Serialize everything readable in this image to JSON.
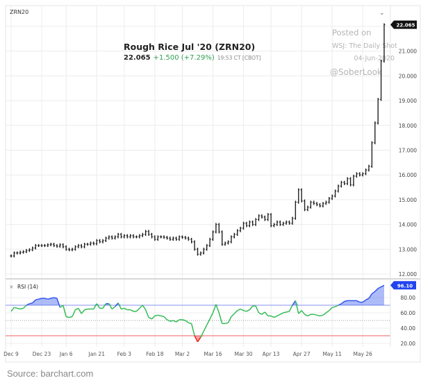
{
  "symbol": "ZRN20",
  "header": {
    "title": "Rough Rice Jul '20 (ZRN20)",
    "last": "22.065",
    "change": "+1.500 (+7.29%)",
    "time": "19:53 CT [CBOT]"
  },
  "watermark": {
    "line1": "Posted on",
    "line2": "WSJ: The Daily Shot",
    "line3": "04-Jun-2020",
    "line4": "@SoberLook"
  },
  "source": "Source: barchart.com",
  "colors": {
    "bars": "#222222",
    "up": "#2e9e4f",
    "rsi_normal": "#33bb55",
    "rsi_over": "#3355ee",
    "rsi_under": "#ee2222",
    "overbought_line": "#9aa8f0",
    "oversold_line": "#f08080"
  },
  "chart_data": [
    {
      "type": "bar",
      "subtype": "ohlc",
      "ylim": [
        12,
        22
      ],
      "yticks": [
        "12.000",
        "13.000",
        "14.000",
        "15.000",
        "16.000",
        "17.000",
        "18.000",
        "19.000",
        "20.000",
        "21.000"
      ],
      "last_label": "22.065",
      "grid": true,
      "xticks": [
        {
          "date": "2019-12-09",
          "label": "Dec 9"
        },
        {
          "date": "2019-12-23",
          "label": "Dec 23"
        },
        {
          "date": "2020-01-06",
          "label": "Jan 6"
        },
        {
          "date": "2020-01-21",
          "label": "Jan 21"
        },
        {
          "date": "2020-02-03",
          "label": "Feb 3"
        },
        {
          "date": "2020-02-18",
          "label": "Feb 18"
        },
        {
          "date": "2020-03-02",
          "label": "Mar 2"
        },
        {
          "date": "2020-03-16",
          "label": "Mar 16"
        },
        {
          "date": "2020-03-30",
          "label": "Mar 30"
        },
        {
          "date": "2020-04-13",
          "label": "Apr 13"
        },
        {
          "date": "2020-04-27",
          "label": "Apr 27"
        },
        {
          "date": "2020-05-11",
          "label": "May 11"
        },
        {
          "date": "2020-05-26",
          "label": "May 26"
        }
      ],
      "dates": [
        "2019-12-09",
        "2019-12-10",
        "2019-12-11",
        "2019-12-12",
        "2019-12-13",
        "2019-12-16",
        "2019-12-17",
        "2019-12-18",
        "2019-12-19",
        "2019-12-20",
        "2019-12-23",
        "2019-12-24",
        "2019-12-26",
        "2019-12-27",
        "2019-12-30",
        "2019-12-31",
        "2020-01-02",
        "2020-01-03",
        "2020-01-06",
        "2020-01-07",
        "2020-01-08",
        "2020-01-09",
        "2020-01-10",
        "2020-01-13",
        "2020-01-14",
        "2020-01-15",
        "2020-01-16",
        "2020-01-17",
        "2020-01-21",
        "2020-01-22",
        "2020-01-23",
        "2020-01-24",
        "2020-01-27",
        "2020-01-28",
        "2020-01-29",
        "2020-01-30",
        "2020-01-31",
        "2020-02-03",
        "2020-02-04",
        "2020-02-05",
        "2020-02-06",
        "2020-02-07",
        "2020-02-10",
        "2020-02-11",
        "2020-02-12",
        "2020-02-13",
        "2020-02-14",
        "2020-02-18",
        "2020-02-19",
        "2020-02-20",
        "2020-02-21",
        "2020-02-24",
        "2020-02-25",
        "2020-02-26",
        "2020-02-27",
        "2020-02-28",
        "2020-03-02",
        "2020-03-03",
        "2020-03-04",
        "2020-03-05",
        "2020-03-06",
        "2020-03-09",
        "2020-03-10",
        "2020-03-11",
        "2020-03-12",
        "2020-03-13",
        "2020-03-16",
        "2020-03-17",
        "2020-03-18",
        "2020-03-19",
        "2020-03-20",
        "2020-03-23",
        "2020-03-24",
        "2020-03-25",
        "2020-03-26",
        "2020-03-27",
        "2020-03-30",
        "2020-03-31",
        "2020-04-01",
        "2020-04-02",
        "2020-04-03",
        "2020-04-06",
        "2020-04-07",
        "2020-04-08",
        "2020-04-09",
        "2020-04-13",
        "2020-04-14",
        "2020-04-15",
        "2020-04-16",
        "2020-04-17",
        "2020-04-20",
        "2020-04-21",
        "2020-04-22",
        "2020-04-23",
        "2020-04-24",
        "2020-04-27",
        "2020-04-28",
        "2020-04-29",
        "2020-04-30",
        "2020-05-01",
        "2020-05-04",
        "2020-05-05",
        "2020-05-06",
        "2020-05-07",
        "2020-05-08",
        "2020-05-11",
        "2020-05-12",
        "2020-05-13",
        "2020-05-14",
        "2020-05-15",
        "2020-05-18",
        "2020-05-19",
        "2020-05-20",
        "2020-05-21",
        "2020-05-22",
        "2020-05-26",
        "2020-05-27",
        "2020-05-28",
        "2020-05-29",
        "2020-06-01",
        "2020-06-02",
        "2020-06-03",
        "2020-06-04"
      ],
      "close": [
        12.73,
        12.85,
        12.85,
        12.88,
        12.9,
        12.95,
        12.98,
        13.05,
        13.15,
        13.15,
        13.15,
        13.15,
        13.18,
        13.2,
        13.15,
        13.12,
        13.18,
        13.1,
        13.0,
        12.98,
        13.0,
        13.1,
        13.15,
        13.1,
        13.2,
        13.2,
        13.25,
        13.22,
        13.35,
        13.3,
        13.35,
        13.45,
        13.5,
        13.45,
        13.5,
        13.6,
        13.5,
        13.55,
        13.5,
        13.55,
        13.5,
        13.5,
        13.55,
        13.6,
        13.72,
        13.6,
        13.5,
        13.4,
        13.5,
        13.5,
        13.48,
        13.45,
        13.4,
        13.45,
        13.4,
        13.5,
        13.48,
        13.45,
        13.4,
        13.3,
        13.0,
        12.8,
        12.85,
        13.0,
        13.15,
        13.4,
        13.7,
        14.0,
        13.7,
        13.2,
        13.25,
        13.3,
        13.5,
        13.6,
        13.75,
        13.85,
        14.05,
        13.95,
        14.1,
        14.0,
        14.2,
        14.35,
        14.3,
        14.2,
        14.4,
        13.95,
        14.0,
        14.1,
        14.0,
        14.05,
        14.1,
        14.05,
        14.25,
        14.9,
        15.4,
        14.95,
        14.6,
        14.7,
        14.9,
        14.85,
        14.8,
        14.75,
        14.85,
        14.9,
        15.05,
        15.15,
        15.35,
        15.55,
        15.7,
        15.65,
        15.85,
        15.6,
        15.95,
        16.05,
        16.0,
        16.05,
        16.2,
        16.35,
        17.3,
        18.1,
        19.05,
        20.6,
        22.065
      ]
    },
    {
      "type": "line",
      "title": "RSI (14)",
      "ylim": [
        15,
        100
      ],
      "yticks": [
        "20.00",
        "40.00",
        "60.00",
        "80.00"
      ],
      "last_label": "96.10",
      "overbought": 70,
      "midline": 50,
      "oversold": 30,
      "values": [
        62,
        67,
        66,
        65,
        66,
        70,
        72,
        73,
        77,
        78,
        79,
        79,
        78,
        79,
        80,
        79,
        67,
        70,
        55,
        54,
        55,
        64,
        66,
        59,
        64,
        65,
        65,
        65,
        72,
        66,
        66,
        72,
        72,
        65,
        68,
        73,
        65,
        66,
        64,
        64,
        62,
        62,
        66,
        70,
        64,
        54,
        52,
        56,
        57,
        56,
        55,
        51,
        49,
        50,
        48,
        51,
        51,
        50,
        47,
        46,
        30,
        22,
        28,
        36,
        44,
        52,
        60,
        71,
        60,
        46,
        46,
        47,
        55,
        59,
        63,
        65,
        63,
        62,
        64,
        69,
        69,
        60,
        58,
        61,
        56,
        56,
        54,
        56,
        58,
        60,
        61,
        62,
        70,
        76,
        59,
        63,
        58,
        56,
        58,
        58,
        57,
        56,
        57,
        60,
        63,
        67,
        68,
        70,
        72,
        75,
        76,
        76,
        76,
        76,
        74,
        74,
        77,
        79,
        85,
        88,
        92,
        94,
        96.1
      ]
    }
  ]
}
